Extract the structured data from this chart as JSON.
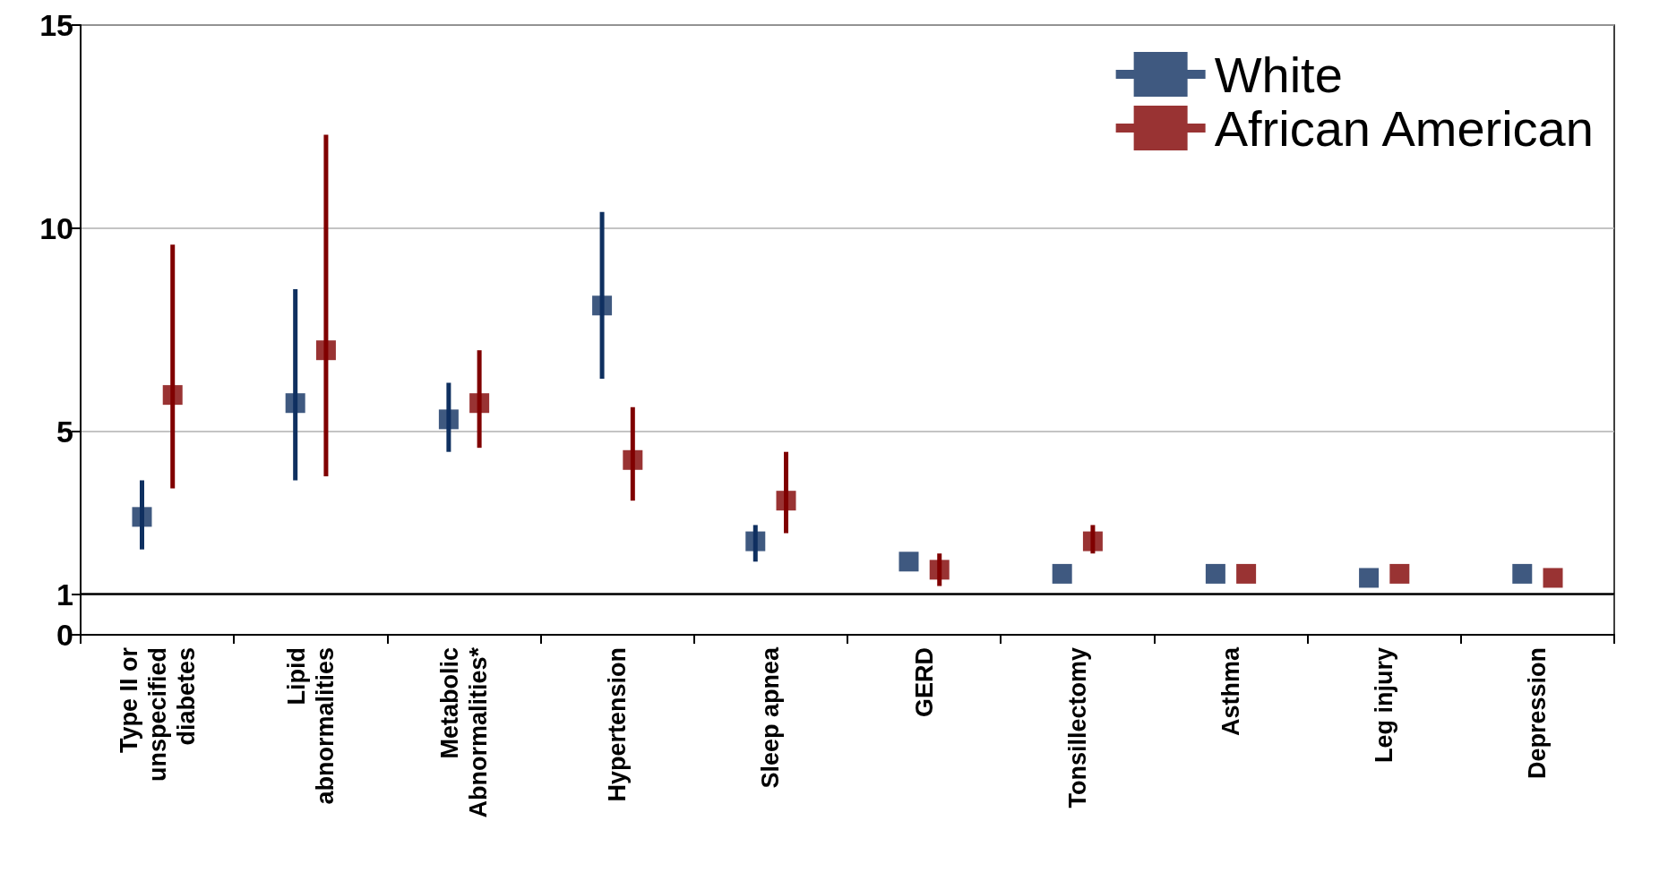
{
  "chart_data": {
    "type": "scatter",
    "categories": [
      "Type II or\nunspecified\ndiabetes",
      "Lipid\nabnormalities",
      "Metabolic\nAbnormalities*",
      "Hypertension",
      "Sleep apnea",
      "GERD",
      "Tonsillectomy",
      "Asthma",
      "Leg injury",
      "Depression"
    ],
    "series": [
      {
        "name": "White",
        "color": "#0f3060",
        "values": [
          2.9,
          5.7,
          5.3,
          8.1,
          2.3,
          1.8,
          1.5,
          1.5,
          1.4,
          1.5
        ],
        "errors": [
          [
            2.1,
            3.8
          ],
          [
            3.8,
            8.5
          ],
          [
            4.5,
            6.2
          ],
          [
            6.3,
            10.4
          ],
          [
            1.8,
            2.7
          ],
          null,
          null,
          null,
          null,
          null
        ]
      },
      {
        "name": "African American",
        "color": "#800000",
        "values": [
          5.9,
          7.0,
          5.7,
          4.3,
          3.3,
          1.6,
          2.3,
          1.5,
          1.5,
          1.4
        ],
        "errors": [
          [
            3.6,
            9.6
          ],
          [
            3.9,
            12.3
          ],
          [
            4.6,
            7.0
          ],
          [
            3.3,
            5.6
          ],
          [
            2.5,
            4.5
          ],
          [
            1.2,
            2.0
          ],
          [
            2.0,
            2.7
          ],
          null,
          null,
          null
        ]
      }
    ],
    "ylim": [
      0,
      15
    ],
    "yticks": [
      0,
      1,
      5,
      10,
      15
    ],
    "grid": "y",
    "legend": "top right",
    "marker": "square",
    "ref_lines": [
      {
        "axis": "y",
        "value": 1,
        "color": "#000000"
      }
    ]
  }
}
